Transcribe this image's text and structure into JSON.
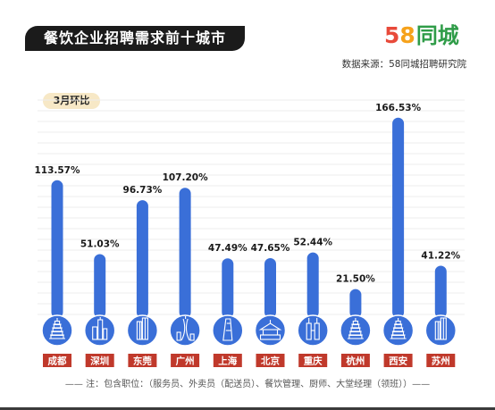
{
  "header": {
    "title": "餐饮企业招聘需求前十城市",
    "logo_digit_5": "5",
    "logo_digit_8": "8",
    "logo_text": "同城",
    "source": "数据来源：58同城招聘研究院"
  },
  "badge": "3月环比",
  "note": "—— 注：包含职位：（服务员、外卖员（配送员）、餐饮管理、厨师、大堂经理（领班））——",
  "colors": {
    "bar": "#3a6fd8",
    "city_label_bg": "#c0392b",
    "icon_circle": "#3a6fd8",
    "title_bg": "#1b1b1b",
    "badge_bg": "#f7e8c6"
  },
  "chart_data": {
    "type": "bar",
    "categories": [
      "成都",
      "深圳",
      "东莞",
      "广州",
      "上海",
      "北京",
      "重庆",
      "杭州",
      "西安",
      "苏州"
    ],
    "values": [
      113.57,
      51.03,
      96.73,
      107.2,
      47.49,
      47.65,
      52.44,
      21.5,
      166.53,
      41.22
    ],
    "data_labels": [
      "113.57%",
      "51.03%",
      "96.73%",
      "107.20%",
      "47.49%",
      "47.65%",
      "52.44%",
      "21.50%",
      "166.53%",
      "41.22%"
    ],
    "icons": [
      "pagoda-icon",
      "skyscraper-icon",
      "tower-icon",
      "canton-tower-icon",
      "shanghai-tower-icon",
      "temple-icon",
      "twin-towers-icon",
      "pagoda-icon",
      "pagoda-icon",
      "tower-icon"
    ],
    "ylim": [
      0,
      180
    ],
    "grid": true,
    "legend": "none"
  }
}
